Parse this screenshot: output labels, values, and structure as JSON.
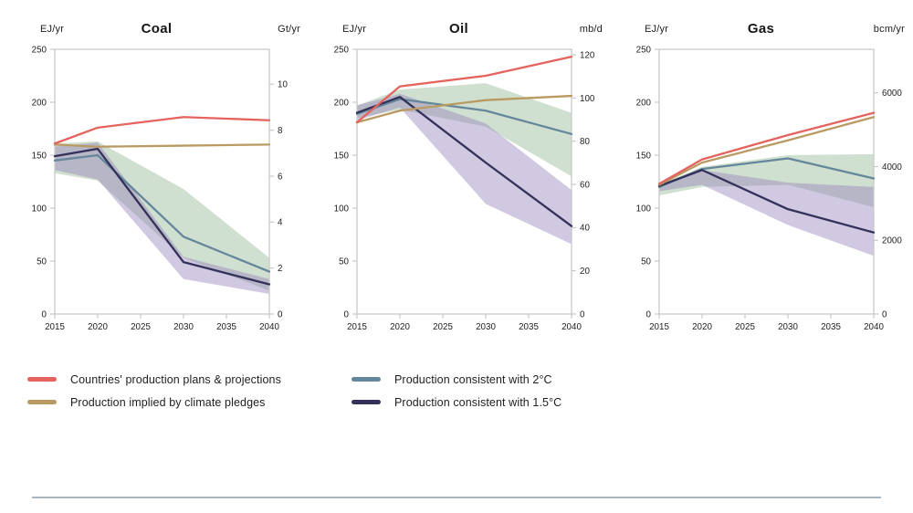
{
  "page": {
    "background": "#ffffff",
    "divider_color": "#a9b6c0"
  },
  "legend": {
    "items": [
      {
        "label": "Countries' production plans & projections",
        "color": "#e4635e"
      },
      {
        "label": "Production implied by climate pledges",
        "color": "#b99a62"
      },
      {
        "label": "Production consistent with 2°C",
        "color": "#64879b"
      },
      {
        "label": "Production consistent with 1.5°C",
        "color": "#33315a"
      }
    ]
  },
  "chart_data": [
    {
      "type": "line",
      "title": "Coal",
      "left_axis": {
        "label": "EJ/yr",
        "ticks": [
          0,
          50,
          100,
          150,
          200,
          250
        ],
        "range": [
          0,
          250
        ]
      },
      "right_axis": {
        "label": "Gt/yr",
        "ticks": [
          0,
          2,
          4,
          6,
          8,
          10
        ],
        "ej_per_unit": 21.7
      },
      "x": [
        2015,
        2020,
        2030,
        2040
      ],
      "x_ticks": [
        2015,
        2020,
        2025,
        2030,
        2035,
        2040
      ],
      "grid": false,
      "series": [
        {
          "name": "Countries' production plans & projections",
          "color": "#e4635e",
          "values": [
            161,
            176,
            186,
            183
          ]
        },
        {
          "name": "Production implied by climate pledges",
          "color": "#b99a62",
          "values": [
            160,
            158,
            159,
            160
          ]
        },
        {
          "name": "Production consistent with 2°C",
          "color": "#64879b",
          "values": [
            145,
            150,
            73,
            40
          ]
        },
        {
          "name": "Production consistent with 1.5°C",
          "color": "#33315a",
          "values": [
            149,
            156,
            49,
            28
          ]
        }
      ],
      "bands": [
        {
          "name": "2C-uncertainty-range",
          "color": "rgba(144,180,142,0.42)",
          "upper": [
            161,
            163,
            118,
            53
          ],
          "lower": [
            133,
            126,
            53,
            22
          ]
        },
        {
          "name": "1.5C-uncertainty-range",
          "color": "rgba(146,124,184,0.42)",
          "upper": [
            158,
            162,
            54,
            33
          ],
          "lower": [
            136,
            127,
            33,
            19
          ]
        }
      ]
    },
    {
      "type": "line",
      "title": "Oil",
      "left_axis": {
        "label": "EJ/yr",
        "ticks": [
          0,
          50,
          100,
          150,
          200,
          250
        ],
        "range": [
          0,
          250
        ]
      },
      "right_axis": {
        "label": "mb/d",
        "ticks": [
          0,
          20,
          40,
          60,
          80,
          100,
          120
        ],
        "ej_per_unit": 2.04
      },
      "x": [
        2015,
        2020,
        2030,
        2040
      ],
      "x_ticks": [
        2015,
        2020,
        2025,
        2030,
        2035,
        2040
      ],
      "grid": false,
      "series": [
        {
          "name": "Countries' production plans & projections",
          "color": "#e4635e",
          "values": [
            181,
            215,
            225,
            243
          ]
        },
        {
          "name": "Production implied by climate pledges",
          "color": "#b99a62",
          "values": [
            181,
            192,
            202,
            206
          ]
        },
        {
          "name": "Production consistent with 2°C",
          "color": "#64879b",
          "values": [
            189,
            203,
            192,
            170
          ]
        },
        {
          "name": "Production consistent with 1.5°C",
          "color": "#33315a",
          "values": [
            190,
            205,
            143,
            83
          ]
        }
      ],
      "bands": [
        {
          "name": "2C-uncertainty-range",
          "color": "rgba(144,180,142,0.42)",
          "upper": [
            197,
            212,
            218,
            190
          ],
          "lower": [
            185,
            193,
            177,
            130
          ]
        },
        {
          "name": "1.5C-uncertainty-range",
          "color": "rgba(146,124,184,0.42)",
          "upper": [
            197,
            208,
            180,
            117
          ],
          "lower": [
            183,
            195,
            104,
            66
          ]
        }
      ]
    },
    {
      "type": "line",
      "title": "Gas",
      "left_axis": {
        "label": "EJ/yr",
        "ticks": [
          0,
          50,
          100,
          150,
          200,
          250
        ],
        "range": [
          0,
          250
        ]
      },
      "right_axis": {
        "label": "bcm/yr",
        "ticks": [
          0,
          2000,
          4000,
          6000
        ],
        "ej_per_unit": 0.0348
      },
      "x": [
        2015,
        2020,
        2030,
        2040
      ],
      "x_ticks": [
        2015,
        2020,
        2025,
        2030,
        2035,
        2040
      ],
      "grid": false,
      "series": [
        {
          "name": "Countries' production plans & projections",
          "color": "#e4635e",
          "values": [
            123,
            146,
            169,
            190
          ]
        },
        {
          "name": "Production implied by climate pledges",
          "color": "#b99a62",
          "values": [
            122,
            143,
            164,
            186
          ]
        },
        {
          "name": "Production consistent with 2°C",
          "color": "#64879b",
          "values": [
            120,
            137,
            147,
            128
          ]
        },
        {
          "name": "Production consistent with 1.5°C",
          "color": "#33315a",
          "values": [
            121,
            136,
            99,
            77
          ]
        }
      ],
      "bands": [
        {
          "name": "2C-uncertainty-range",
          "color": "rgba(144,180,142,0.42)",
          "upper": [
            122,
            139,
            150,
            151
          ],
          "lower": [
            112,
            120,
            122,
            101
          ]
        },
        {
          "name": "1.5C-uncertainty-range",
          "color": "rgba(146,124,184,0.42)",
          "upper": [
            122,
            136,
            124,
            120
          ],
          "lower": [
            116,
            122,
            84,
            55
          ]
        }
      ]
    }
  ]
}
